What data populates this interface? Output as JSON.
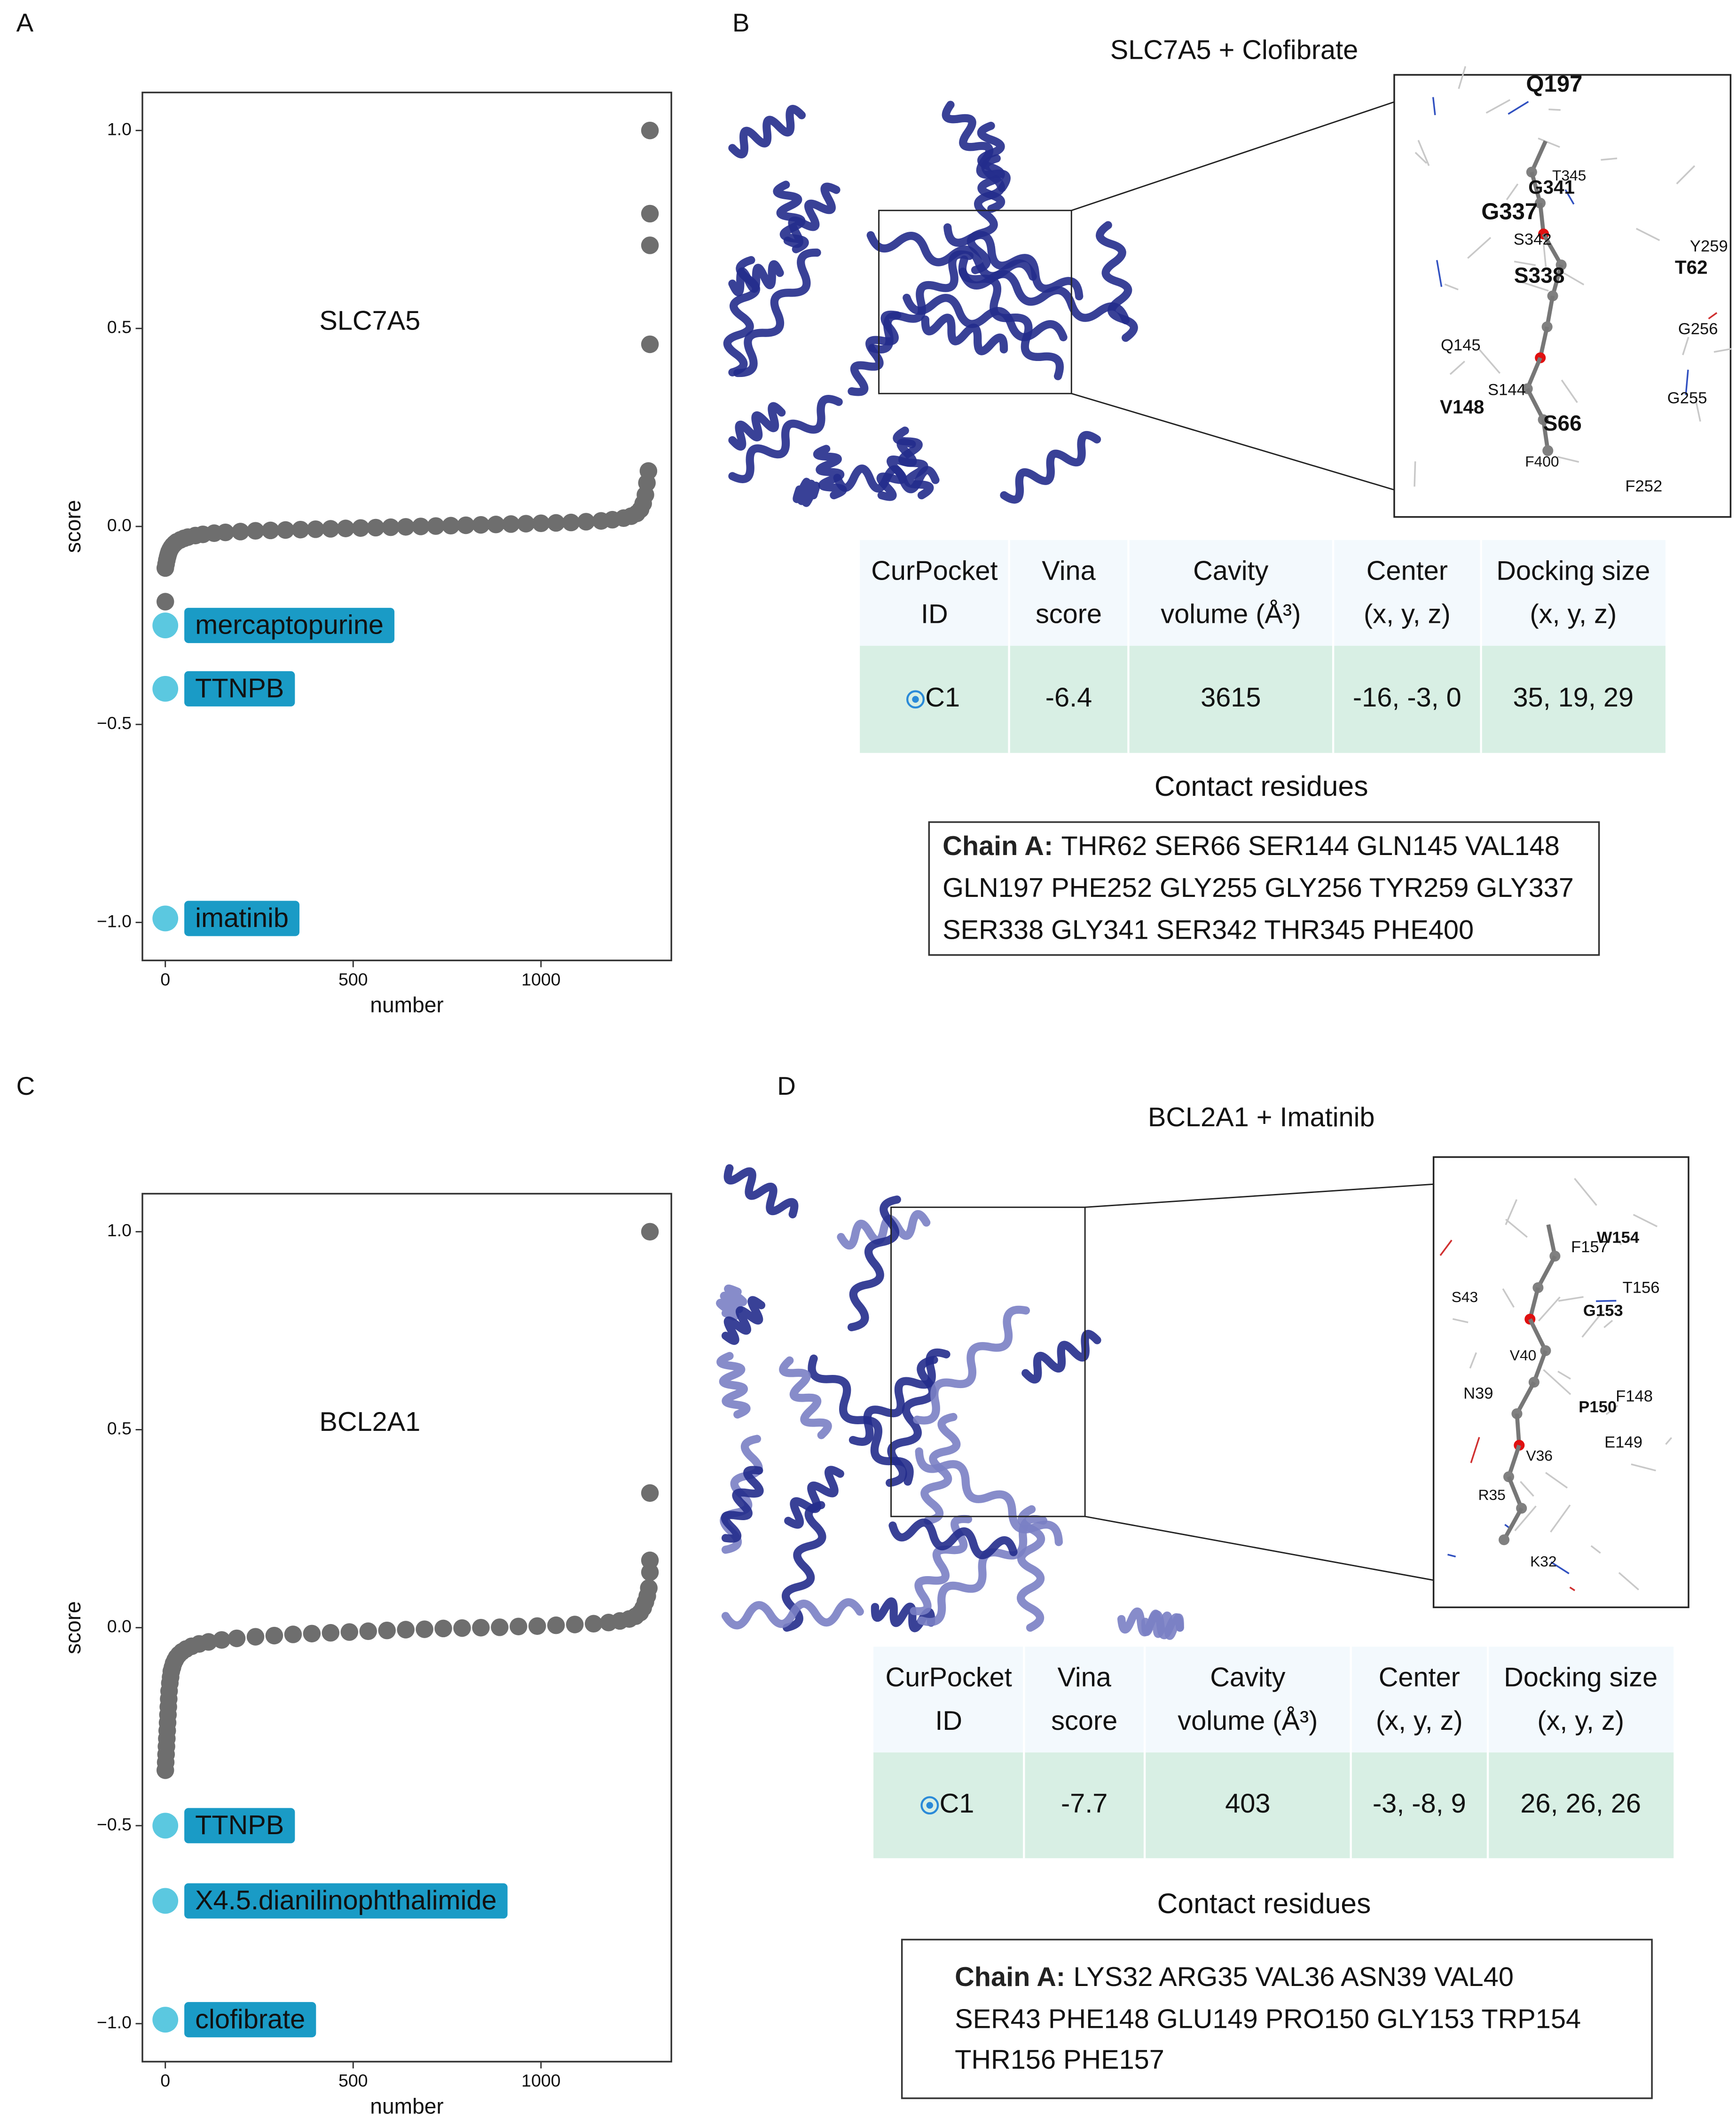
{
  "panel_labels": [
    "A",
    "B",
    "C",
    "D"
  ],
  "chart_data": [
    {
      "type": "scatter",
      "title": "SLC7A5",
      "x_label": "number",
      "y_label": "score",
      "xlim": [
        -61,
        1347
      ],
      "ylim": [
        -1.096,
        1.096
      ],
      "xticks": [
        0,
        500,
        1000
      ],
      "yticks": [
        {
          "value": 1,
          "label": "1.0"
        },
        0.5,
        {
          "value": 0,
          "label": "0.0"
        },
        {
          "value": -0.5,
          "label": "−0.5"
        },
        {
          "value": -1,
          "label": "−1.0"
        }
      ],
      "points": {
        "color": "#6e6e6e",
        "x": [
          0,
          0,
          2,
          4,
          6,
          8,
          10,
          13,
          16,
          20,
          25,
          30,
          40,
          50,
          60,
          80,
          100,
          130,
          160,
          200,
          240,
          280,
          320,
          360,
          400,
          440,
          480,
          520,
          560,
          600,
          640,
          680,
          720,
          760,
          800,
          840,
          880,
          920,
          960,
          1000,
          1040,
          1080,
          1120,
          1160,
          1190,
          1220,
          1240,
          1255,
          1265,
          1272,
          1278,
          1282,
          1286,
          1290,
          1290,
          1290,
          1290
        ],
        "y": [
          -0.19,
          -0.105,
          -0.095,
          -0.085,
          -0.077,
          -0.07,
          -0.064,
          -0.058,
          -0.053,
          -0.048,
          -0.043,
          -0.039,
          -0.034,
          -0.03,
          -0.027,
          -0.023,
          -0.02,
          -0.017,
          -0.015,
          -0.013,
          -0.011,
          -0.01,
          -0.009,
          -0.008,
          -0.007,
          -0.006,
          -0.005,
          -0.004,
          -0.003,
          -0.002,
          -0.001,
          0,
          0.001,
          0.002,
          0.003,
          0.004,
          0.005,
          0.006,
          0.007,
          0.008,
          0.009,
          0.01,
          0.012,
          0.014,
          0.017,
          0.021,
          0.026,
          0.033,
          0.043,
          0.058,
          0.08,
          0.11,
          0.14,
          0.46,
          0.71,
          0.79,
          1.0
        ]
      },
      "highlights": {
        "color": "#5bc8e0",
        "label_color": "#1a9bc6",
        "x": [
          0,
          0,
          0
        ],
        "y": [
          -0.25,
          -0.41,
          -0.99
        ],
        "labels": [
          "mercaptopurine",
          "TTNPB",
          "imatinib"
        ]
      }
    },
    {
      "type": "scatter",
      "title": "BCL2A1",
      "x_label": "number",
      "y_label": "score",
      "xlim": [
        -61,
        1347
      ],
      "ylim": [
        -1.096,
        1.096
      ],
      "xticks": [
        0,
        500,
        1000
      ],
      "yticks": [
        {
          "value": 1,
          "label": "1.0"
        },
        0.5,
        {
          "value": 0,
          "label": "0.0"
        },
        {
          "value": -0.5,
          "label": "−0.5"
        },
        {
          "value": -1,
          "label": "−1.0"
        }
      ],
      "points": {
        "color": "#6e6e6e",
        "x": [
          0,
          1,
          2,
          3,
          4,
          5,
          6,
          7,
          8,
          9,
          10,
          12,
          14,
          16,
          19,
          22,
          26,
          30,
          36,
          44,
          55,
          70,
          90,
          115,
          150,
          190,
          240,
          290,
          340,
          390,
          440,
          490,
          540,
          590,
          640,
          690,
          740,
          790,
          840,
          890,
          940,
          990,
          1040,
          1090,
          1140,
          1180,
          1210,
          1235,
          1252,
          1264,
          1272,
          1278,
          1283,
          1287,
          1290,
          1290,
          1290,
          1290
        ],
        "y": [
          -0.36,
          -0.34,
          -0.32,
          -0.3,
          -0.28,
          -0.26,
          -0.24,
          -0.22,
          -0.2,
          -0.18,
          -0.16,
          -0.14,
          -0.125,
          -0.11,
          -0.1,
          -0.09,
          -0.082,
          -0.075,
          -0.068,
          -0.061,
          -0.054,
          -0.047,
          -0.041,
          -0.036,
          -0.031,
          -0.027,
          -0.023,
          -0.02,
          -0.017,
          -0.015,
          -0.013,
          -0.011,
          -0.009,
          -0.007,
          -0.005,
          -0.004,
          -0.002,
          -0.001,
          0,
          0.001,
          0.003,
          0.004,
          0.006,
          0.008,
          0.01,
          0.013,
          0.017,
          0.022,
          0.029,
          0.038,
          0.05,
          0.065,
          0.08,
          0.1,
          0.14,
          0.17,
          0.34,
          1.0
        ]
      },
      "highlights": {
        "color": "#5bc8e0",
        "label_color": "#1a9bc6",
        "x": [
          0,
          0,
          0
        ],
        "y": [
          -0.5,
          -0.69,
          -0.99
        ],
        "labels": [
          "TTNPB",
          "X4.5.dianilinophthalimide",
          "clofibrate"
        ]
      }
    }
  ],
  "docking": [
    {
      "title": "SLC7A5 + Clofibrate",
      "zoom_labels": [
        "Q197",
        "G341",
        "T345",
        "G337",
        "S342",
        "Y259",
        "T62",
        "S338",
        "G256",
        "Q145",
        "S144",
        "G255",
        "V148",
        "S66",
        "F400",
        "F252"
      ],
      "table": {
        "header": [
          [
            "CurPocket",
            "ID"
          ],
          [
            "Vina",
            "score"
          ],
          [
            "Cavity",
            "volume (Å³)"
          ],
          [
            "Center",
            "(x, y, z)"
          ],
          [
            "Docking size",
            "(x, y, z)"
          ]
        ],
        "rows": [
          [
            "C1",
            -6.4,
            3615,
            "-16, -3, 0",
            "35, 19, 29"
          ]
        ]
      },
      "contact_title": "Contact residues",
      "chain": "Chain A:",
      "residues": [
        "THR62 SER66 SER144 GLN145 VAL148",
        "GLN197 PHE252 GLY255 GLY256 TYR259 GLY337",
        "SER338 GLY341 SER342 THR345 PHE400"
      ]
    },
    {
      "title": "BCL2A1 + Imatinib",
      "zoom_labels": [
        "W154",
        "F157",
        "T156",
        "S43",
        "G153",
        "V40",
        "N39",
        "F148",
        "P150",
        "E149",
        "V36",
        "R35",
        "K32"
      ],
      "table": {
        "header": [
          [
            "CurPocket",
            "ID"
          ],
          [
            "Vina",
            "score"
          ],
          [
            "Cavity",
            "volume (Å³)"
          ],
          [
            "Center",
            "(x, y, z)"
          ],
          [
            "Docking size",
            "(x, y, z)"
          ]
        ],
        "rows": [
          [
            "C1",
            -7.7,
            403,
            "-3, -8, 9",
            "26, 26, 26"
          ]
        ]
      },
      "contact_title": "Contact residues",
      "chain": "Chain A:",
      "residues": [
        "LYS32 ARG35 VAL36 ASN39 VAL40",
        "SER43 PHE148 GLU149 PRO150 GLY153 TRP154",
        "THR156 PHE157"
      ]
    }
  ]
}
